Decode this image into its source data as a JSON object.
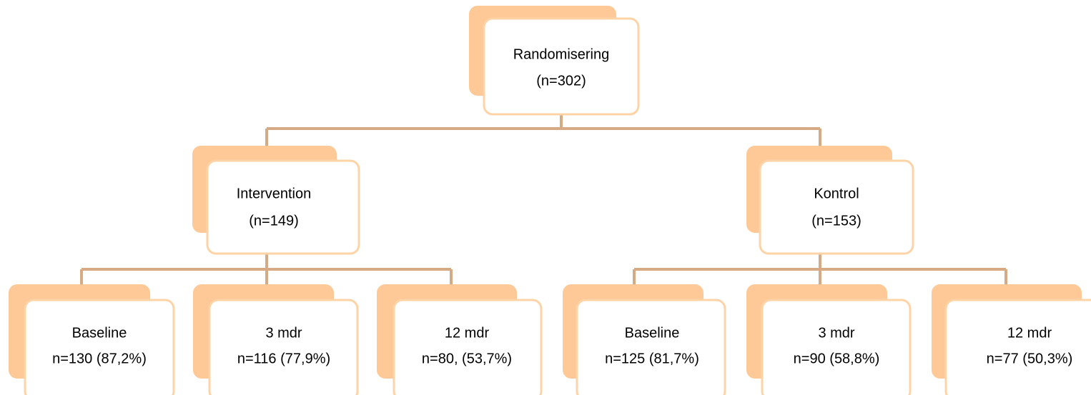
{
  "nodes": [
    {
      "lines": [
        "Randomisering",
        "(n=302)"
      ]
    },
    {
      "lines": [
        "Intervention",
        "(n=149)"
      ]
    },
    {
      "lines": [
        "Kontrol",
        "(n=153)"
      ]
    },
    {
      "lines": [
        "Baseline",
        "n=130 (87,2%)"
      ]
    },
    {
      "lines": [
        "3 mdr",
        "n=116 (77,9%)"
      ]
    },
    {
      "lines": [
        "12 mdr",
        "n=80, (53,7%)"
      ]
    },
    {
      "lines": [
        "Baseline",
        "n=125 (81,7%)"
      ]
    },
    {
      "lines": [
        "3 mdr",
        "n=90 (58,8%)"
      ]
    },
    {
      "lines": [
        "12 mdr",
        "n=77 (50,3%)"
      ]
    }
  ]
}
